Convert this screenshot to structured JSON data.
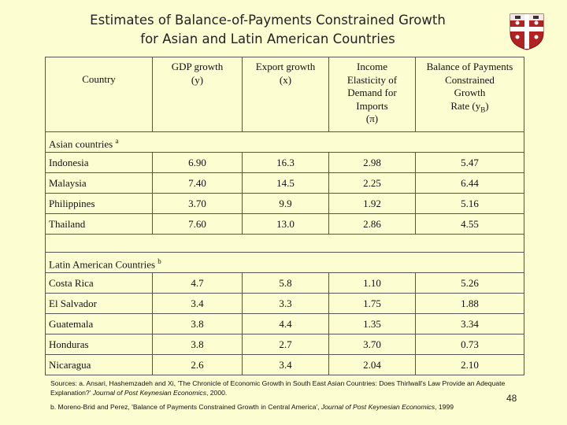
{
  "title": {
    "lines": [
      "Estimates of Balance-of-Payments Constrained Growth",
      "for Asian and Latin American Countries"
    ]
  },
  "table": {
    "header": [
      {
        "lines": [
          "Country"
        ]
      },
      {
        "lines": [
          "GDP growth",
          "(y)"
        ]
      },
      {
        "lines": [
          "Export growth",
          "(x)"
        ]
      },
      {
        "lines": [
          "Income",
          "Elasticity of",
          "Demand for",
          "Imports",
          "(π)"
        ]
      },
      {
        "lines": [
          "Balance of Payments",
          "Constrained",
          "Growth",
          [
            {
              "text": "Rate (y"
            },
            {
              "text": "B",
              "style": "sub"
            },
            {
              "text": ")"
            }
          ]
        ]
      }
    ],
    "sections": [
      {
        "label": [
          {
            "text": "Asian countries "
          },
          {
            "text": "a",
            "style": "sup"
          }
        ],
        "rows": [
          [
            "Indonesia",
            "6.90",
            "16.3",
            "2.98",
            "5.47"
          ],
          [
            "Malaysia",
            "7.40",
            "14.5",
            "2.25",
            "6.44"
          ],
          [
            "Philippines",
            "3.70",
            "9.9",
            "1.92",
            "5.16"
          ],
          [
            "Thailand",
            "7.60",
            "13.0",
            "2.86",
            "4.55"
          ]
        ]
      },
      {
        "label": [
          {
            "text": "Latin  American Countries "
          },
          {
            "text": "b",
            "style": "sup"
          }
        ],
        "rows": [
          [
            "Costa Rica",
            "4.7",
            "5.8",
            "1.10",
            "5.26"
          ],
          [
            "El Salvador",
            "3.4",
            "3.3",
            "1.75",
            "1.88"
          ],
          [
            "Guatemala",
            "3.8",
            "4.4",
            "1.35",
            "3.34"
          ],
          [
            "Honduras",
            "3.8",
            "2.7",
            "3.70",
            "0.73"
          ],
          [
            "Nicaragua",
            "2.6",
            "3.4",
            "2.04",
            "2.10"
          ]
        ]
      }
    ]
  },
  "footnotes": [
    [
      {
        "text": "Sources: a. Ansari, Hashemzadeh and Xi, 'The Chronicle of Economic Growth in South East Asian Countries: Does Thirlwall's Law Provide an Adequate Explanation?' "
      },
      {
        "text": "Journal of Post Keynesian Economics",
        "style": "italic"
      },
      {
        "text": ", 2000."
      }
    ],
    [
      {
        "text": "b. Moreno-Brid and Perez, 'Balance of Payments Constrained Growth in Central America', "
      },
      {
        "text": "Journal of Post Keynesian Economics",
        "style": "italic"
      },
      {
        "text": ", 1999"
      }
    ]
  ],
  "page_number": "48"
}
